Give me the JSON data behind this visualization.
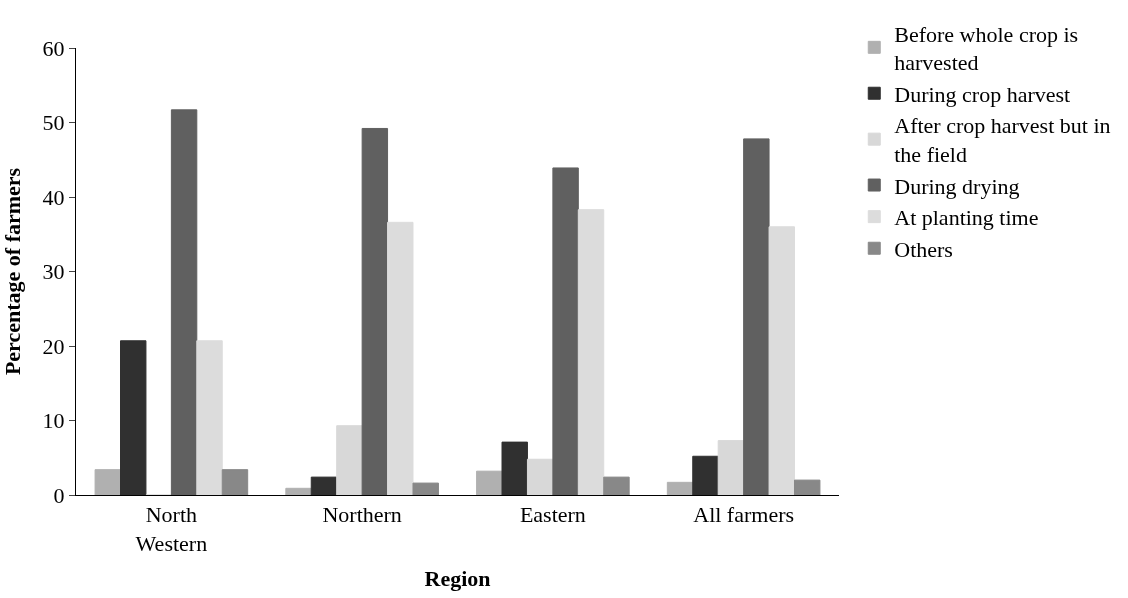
{
  "chart_data": {
    "type": "bar",
    "xlabel": "Region",
    "ylabel": "Percentage of farmers",
    "categories": [
      "North\nWestern",
      "Northern",
      "Eastern",
      "All farmers"
    ],
    "series": [
      {
        "name": "Before whole crop is\nharvested",
        "color": "#b0b0b0",
        "values": [
          3.4,
          0.9,
          3.2,
          1.7
        ]
      },
      {
        "name": "During crop harvest",
        "color": "#303030",
        "values": [
          20.7,
          2.4,
          7.1,
          5.2
        ]
      },
      {
        "name": "After crop harvest but in\nthe field",
        "color": "#d8d8d8",
        "values": [
          0,
          9.3,
          4.8,
          7.3
        ]
      },
      {
        "name": "During drying",
        "color": "#606060",
        "values": [
          51.7,
          49.2,
          43.9,
          47.8
        ]
      },
      {
        "name": "At planting time",
        "color": "#dcdcdc",
        "values": [
          20.7,
          36.6,
          38.3,
          36.0
        ]
      },
      {
        "name": "Others",
        "color": "#888888",
        "values": [
          3.4,
          1.6,
          2.4,
          2.0
        ]
      }
    ],
    "ylim": [
      0,
      60
    ],
    "yticks": [
      0,
      10,
      20,
      30,
      40,
      50,
      60
    ],
    "grid": false,
    "legend": "top right"
  }
}
